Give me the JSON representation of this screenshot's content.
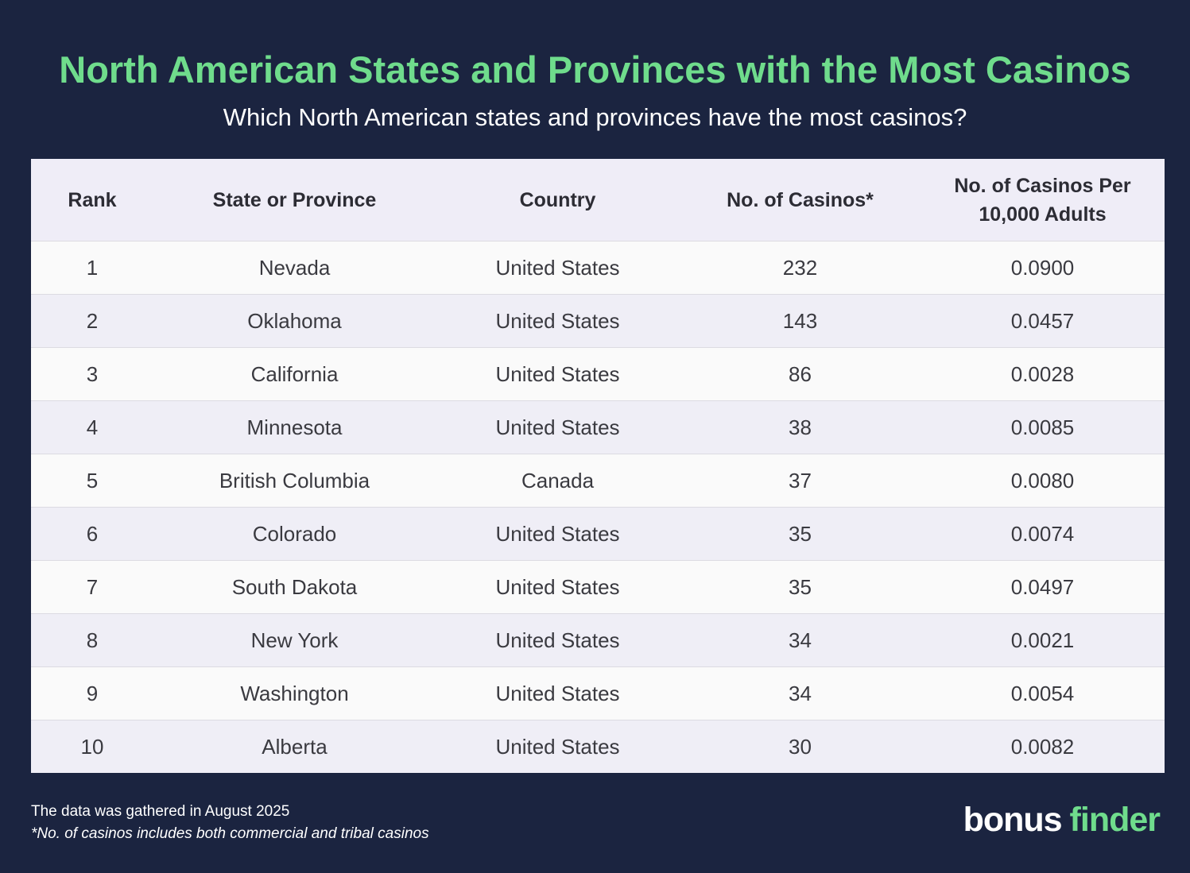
{
  "header": {
    "title": "North American States and Provinces with the Most Casinos",
    "subtitle": "Which North American states and provinces have the most casinos?"
  },
  "chart_data": {
    "type": "table",
    "columns": [
      "Rank",
      "State or Province",
      "Country",
      "No. of Casinos*",
      "No. of Casinos Per 10,000 Adults"
    ],
    "rows": [
      [
        "1",
        "Nevada",
        "United States",
        "232",
        "0.0900"
      ],
      [
        "2",
        "Oklahoma",
        "United States",
        "143",
        "0.0457"
      ],
      [
        "3",
        "California",
        "United States",
        "86",
        "0.0028"
      ],
      [
        "4",
        "Minnesota",
        "United States",
        "38",
        "0.0085"
      ],
      [
        "5",
        "British Columbia",
        "Canada",
        "37",
        "0.0080"
      ],
      [
        "6",
        "Colorado",
        "United States",
        "35",
        "0.0074"
      ],
      [
        "7",
        "South Dakota",
        "United States",
        "35",
        "0.0497"
      ],
      [
        "8",
        "New York",
        "United States",
        "34",
        "0.0021"
      ],
      [
        "9",
        "Washington",
        "United States",
        "34",
        "0.0054"
      ],
      [
        "10",
        "Alberta",
        "United States",
        "30",
        "0.0082"
      ]
    ]
  },
  "footer": {
    "gathered": "The data was gathered in August 2025",
    "note": "*No. of casinos includes both commercial and tribal casinos",
    "logo_bonus": "bonus",
    "logo_finder": "finder"
  },
  "colors": {
    "background": "#1b2440",
    "accent": "#6fdc8c",
    "header_row": "#efedf7",
    "row_light": "#fafafa",
    "row_tint": "#efeef6"
  }
}
